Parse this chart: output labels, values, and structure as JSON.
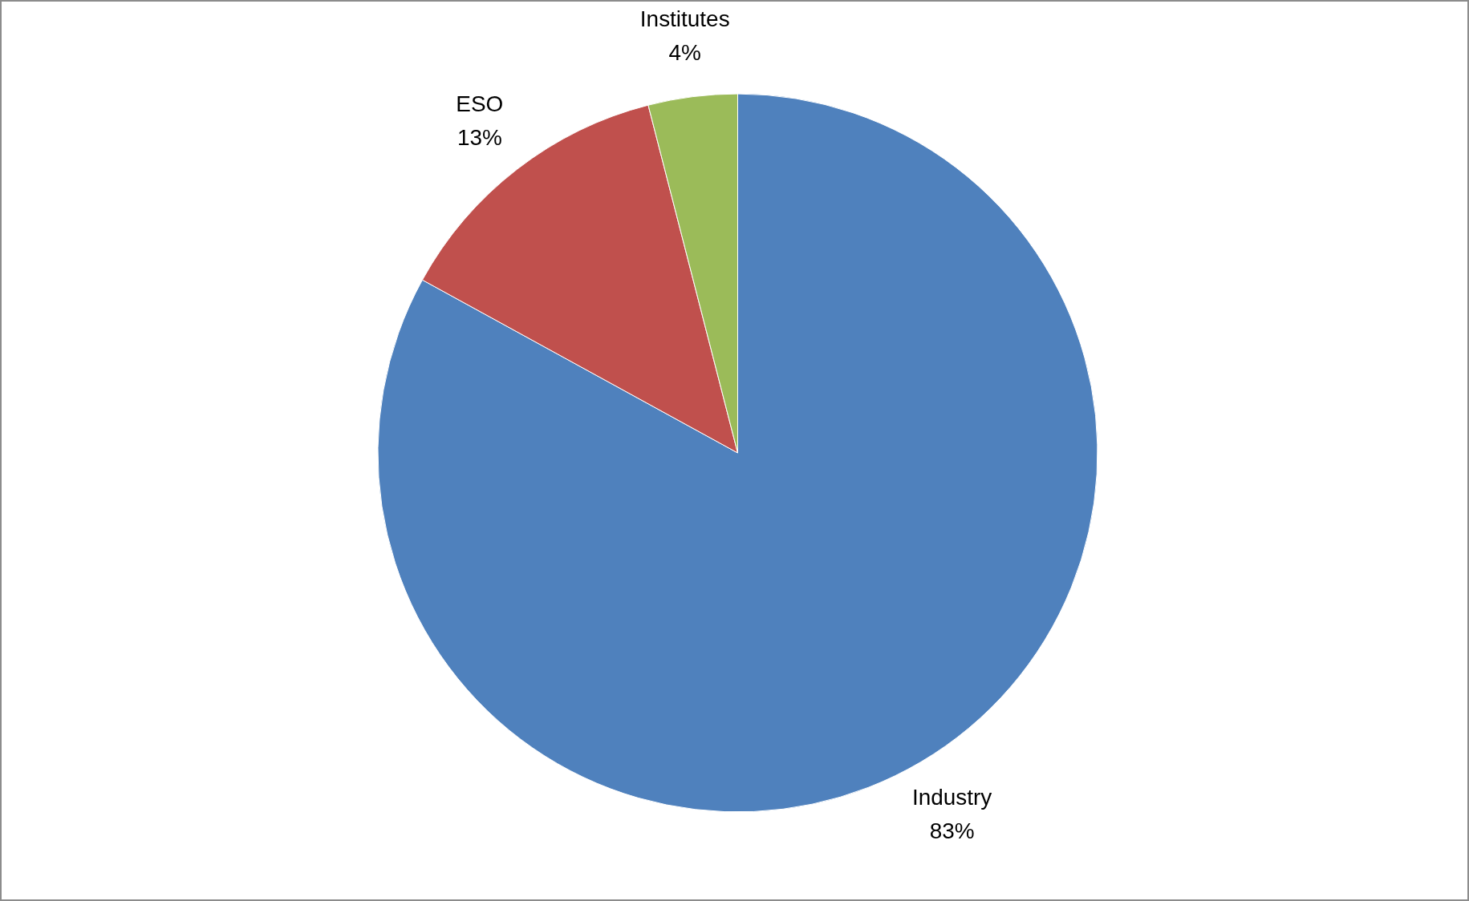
{
  "chart_data": {
    "type": "pie",
    "categories": [
      "Industry",
      "ESO",
      "Institutes"
    ],
    "values": [
      83,
      13,
      4
    ],
    "colors": [
      "#4f81bd",
      "#c0504d",
      "#9bbb59"
    ],
    "value_labels": [
      "83%",
      "13%",
      "4%"
    ],
    "legend": false
  }
}
